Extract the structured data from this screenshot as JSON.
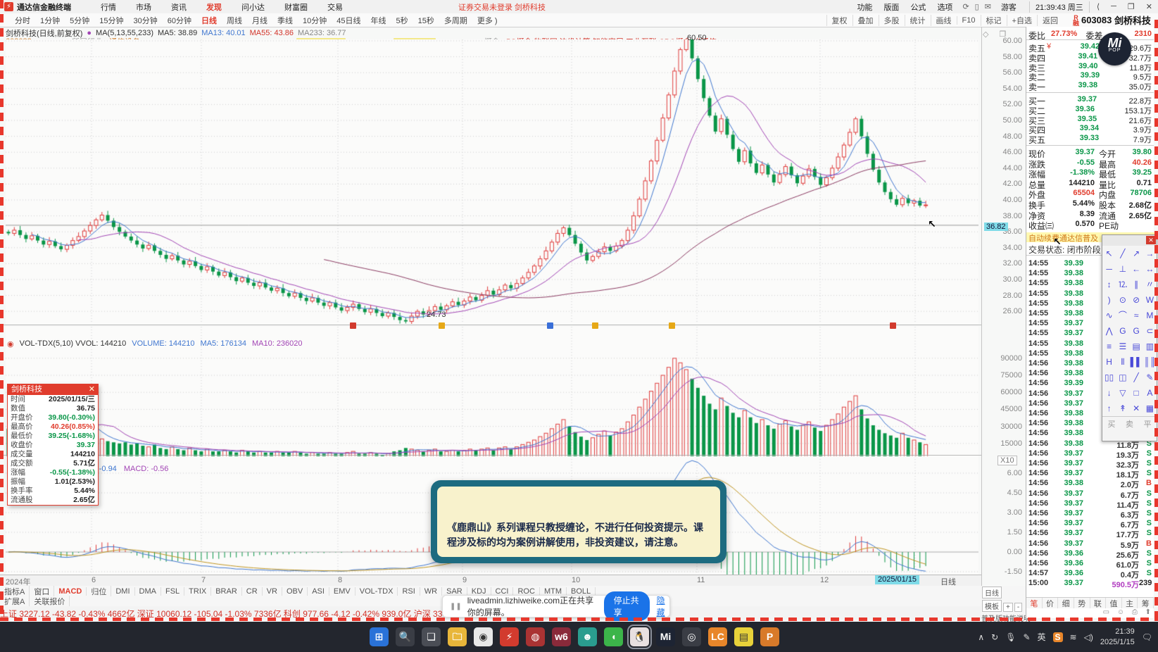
{
  "window": {
    "logo_glyph": "⚡",
    "app_name": "通达信金融终端",
    "login_notice": "证券交易未登录 剑桥科技",
    "guest": "游客",
    "clock": "21:39:43 周三",
    "win_buttons": [
      "⟨",
      "─",
      "❐",
      "✕"
    ]
  },
  "menubar": {
    "items": [
      "行情",
      "市场",
      "资讯",
      "发现",
      "问小达",
      "财富圈",
      "交易"
    ],
    "active": "发现",
    "right_items": [
      "功能",
      "版面",
      "公式",
      "选项"
    ],
    "right_icons": [
      "⟳",
      "▯",
      "✉"
    ]
  },
  "period_bar": {
    "items": [
      "分时",
      "1分钟",
      "5分钟",
      "15分钟",
      "30分钟",
      "60分钟",
      "日线",
      "周线",
      "月线",
      "季线",
      "10分钟",
      "45日线",
      "年线",
      "5秒",
      "15秒",
      "多周期",
      "更多 )"
    ],
    "active": "日线",
    "right_buttons": [
      "复权",
      "叠加",
      "多股",
      "统计",
      "画线",
      "F10",
      "标记",
      "+自选",
      "返回"
    ],
    "stock_badge": "R 融",
    "stock_code": "603083",
    "stock_name": "剑桥科技"
  },
  "chart_header": {
    "title": "剑桥科技(日线,前复权)",
    "dot_icon": "●",
    "ma_label": "MA(5,13,55,233)",
    "ma5": "MA5: 38.89",
    "ma13": "MA13: 40.01",
    "ma55": "MA55: 43.86",
    "ma233": "MA233: 36.77",
    "code": "603083",
    "industry_label": "所属行业:",
    "industry": "通信设备",
    "concept_label": "概念:",
    "concepts": "5G概念 物联网 边缘计算 智能家居 工业互联 CPO概念 光通信",
    "tool_icons": "◇ ❐"
  },
  "main_chart": {
    "price_axis": [
      "60.00",
      "58.00",
      "56.00",
      "54.00",
      "52.00",
      "50.00",
      "48.00",
      "46.00",
      "44.00",
      "42.00",
      "40.00",
      "38.00",
      "36.00",
      "34.00",
      "32.00",
      "30.00",
      "28.00",
      "26.00"
    ],
    "crosshair_value": "36.82",
    "high_annotation": "60.50",
    "low_annotation": "24.73"
  },
  "vol_pane": {
    "header_left": "VOL-TDX(5,10) VVOL: 144210",
    "volume": "VOLUME: 144210",
    "ma5": "MA5: 176134",
    "ma10": "MA10: 236020",
    "axis": [
      "90000",
      "75000",
      "60000",
      "45000",
      "30000",
      "15000"
    ],
    "multiplier": "X10"
  },
  "macd_pane": {
    "dea": "DEA: -0.94",
    "macd": "MACD: -0.56",
    "axis": [
      "6.00",
      "4.50",
      "3.00",
      "1.50",
      "0.00",
      "-1.50"
    ],
    "period_label": "日线"
  },
  "x_axis": {
    "labels": [
      "2024年",
      "6",
      "7",
      "8",
      "9",
      "10",
      "11",
      "12",
      "1"
    ],
    "current_date": "2025/01/15",
    "right_label": "日线"
  },
  "indicator_tabs": {
    "items": [
      "指标A",
      "窗口",
      "MACD",
      "归位",
      "DMI",
      "DMA",
      "FSL",
      "TRIX",
      "BRAR",
      "CR",
      "VR",
      "OBV",
      "ASI",
      "EMV",
      "VOL-TDX",
      "RSI",
      "WR",
      "SAR",
      "KDJ",
      "CCI",
      "ROC",
      "MTM",
      "BOLL"
    ],
    "active": "MACD",
    "subrow": [
      "扩展A",
      "关联报价"
    ]
  },
  "ticker": "上证 3227.12  -43.82  -0.43%  4662亿    深证 10060.12  -105.04  -1.03%  7336亿    科创 977.66  -4.12  -0.42%  939.0亿    沪深 3306.02  -24.61  -0.74%",
  "quote_panel": {
    "weibi_label": "委比",
    "weibi": "27.73%",
    "weicha_label": "委差",
    "weicha": "2310",
    "sell_rows": [
      {
        "label": "卖五",
        "mark": "¥",
        "price": "39.42",
        "vol": "29.6万"
      },
      {
        "label": "卖四",
        "mark": "",
        "price": "39.41",
        "vol": "32.7万"
      },
      {
        "label": "卖三",
        "mark": "",
        "price": "39.40",
        "vol": "11.8万"
      },
      {
        "label": "卖二",
        "mark": "",
        "price": "39.39",
        "vol": "9.5万"
      },
      {
        "label": "卖一",
        "mark": "",
        "price": "39.38",
        "vol": "35.0万"
      }
    ],
    "buy_rows": [
      {
        "label": "买一",
        "price": "39.37",
        "vol": "22.8万"
      },
      {
        "label": "买二",
        "price": "39.36",
        "vol": "153.1万"
      },
      {
        "label": "买三",
        "price": "39.35",
        "vol": "21.6万"
      },
      {
        "label": "买四",
        "price": "39.34",
        "vol": "3.9万"
      },
      {
        "label": "买五",
        "price": "39.33",
        "vol": "7.9万"
      }
    ],
    "stats": [
      {
        "l1": "现价",
        "v1": "39.37",
        "c1": "green",
        "l2": "今开",
        "v2": "39.80",
        "c2": "green"
      },
      {
        "l1": "涨跌",
        "v1": "-0.55",
        "c1": "green",
        "l2": "最高",
        "v2": "40.26",
        "c2": "red"
      },
      {
        "l1": "涨幅",
        "v1": "-1.38%",
        "c1": "green",
        "l2": "最低",
        "v2": "39.25",
        "c2": "green"
      },
      {
        "l1": "总量",
        "v1": "144210",
        "c1": "dark",
        "l2": "量比",
        "v2": "0.71",
        "c2": "dark"
      },
      {
        "l1": "外盘",
        "v1": "65504",
        "c1": "red",
        "l2": "内盘",
        "v2": "78706",
        "c2": "green"
      },
      {
        "l1": "换手",
        "v1": "5.44%",
        "c1": "dark",
        "l2": "股本",
        "v2": "2.68亿",
        "c2": "dark"
      },
      {
        "l1": "净资",
        "v1": "8.39",
        "c1": "dark",
        "l2": "流通",
        "v2": "2.65亿",
        "c2": "dark"
      },
      {
        "l1": "收益㈢",
        "v1": "0.570",
        "c1": "dark",
        "l2": "PE动",
        "v2": "",
        "c2": "dark"
      }
    ],
    "notice": "自动续费通达信普及",
    "trade_status": "交易状态: 闭市阶段",
    "ticks": [
      {
        "t": "14:55",
        "p": "39.39",
        "v": "",
        "f": ""
      },
      {
        "t": "14:55",
        "p": "39.38",
        "v": "",
        "f": ""
      },
      {
        "t": "14:55",
        "p": "39.38",
        "v": "",
        "f": ""
      },
      {
        "t": "14:55",
        "p": "39.38",
        "v": "",
        "f": ""
      },
      {
        "t": "14:55",
        "p": "39.38",
        "v": "",
        "f": ""
      },
      {
        "t": "14:55",
        "p": "39.38",
        "v": "",
        "f": ""
      },
      {
        "t": "14:55",
        "p": "39.37",
        "v": "",
        "f": ""
      },
      {
        "t": "14:55",
        "p": "39.37",
        "v": "",
        "f": ""
      },
      {
        "t": "14:55",
        "p": "39.38",
        "v": "",
        "f": ""
      },
      {
        "t": "14:55",
        "p": "39.38",
        "v": "",
        "f": ""
      },
      {
        "t": "14:56",
        "p": "39.38",
        "v": "",
        "f": ""
      },
      {
        "t": "14:56",
        "p": "39.38",
        "v": "",
        "f": ""
      },
      {
        "t": "14:56",
        "p": "39.39",
        "v": "",
        "f": ""
      },
      {
        "t": "14:56",
        "p": "39.37",
        "v": "",
        "f": ""
      },
      {
        "t": "14:56",
        "p": "39.37",
        "v": "",
        "f": ""
      },
      {
        "t": "14:56",
        "p": "39.38",
        "v": "",
        "f": ""
      },
      {
        "t": "14:56",
        "p": "39.38",
        "v": "",
        "f": ""
      },
      {
        "t": "14:56",
        "p": "39.38",
        "v": "6.7万",
        "f": "B"
      },
      {
        "t": "14:56",
        "p": "39.38",
        "v": "11.8万",
        "f": "S"
      },
      {
        "t": "14:56",
        "p": "39.37",
        "v": "19.3万",
        "f": "S"
      },
      {
        "t": "14:56",
        "p": "39.37",
        "v": "32.3万",
        "f": "S"
      },
      {
        "t": "14:56",
        "p": "39.37",
        "v": "18.1万",
        "f": "S"
      },
      {
        "t": "14:56",
        "p": "39.38",
        "v": "2.0万",
        "f": "B"
      },
      {
        "t": "14:56",
        "p": "39.37",
        "v": "6.7万",
        "f": "S"
      },
      {
        "t": "14:56",
        "p": "39.37",
        "v": "11.4万",
        "f": "S"
      },
      {
        "t": "14:56",
        "p": "39.37",
        "v": "6.3万",
        "f": "S"
      },
      {
        "t": "14:56",
        "p": "39.37",
        "v": "6.7万",
        "f": "S"
      },
      {
        "t": "14:56",
        "p": "39.37",
        "v": "17.7万",
        "f": "S"
      },
      {
        "t": "14:56",
        "p": "39.37",
        "v": "5.9万",
        "f": "B"
      },
      {
        "t": "14:56",
        "p": "39.36",
        "v": "25.6万",
        "f": "S"
      },
      {
        "t": "14:56",
        "p": "39.36",
        "v": "61.0万",
        "f": "S"
      },
      {
        "t": "14:57",
        "p": "39.36",
        "v": "0.4万",
        "f": "S"
      },
      {
        "t": "15:00",
        "p": "39.37",
        "v": "590.5万",
        "f": "239"
      }
    ],
    "tabs": [
      "笔",
      "价",
      "细",
      "势",
      "联",
      "值",
      "主",
      "筹"
    ],
    "active_tab": "笔",
    "icons_row": "▭ ☺ ⎙ ⬆",
    "left_controls": {
      "period": "日线",
      "template": "模板",
      "plus": "+",
      "minus": "-",
      "help": "普及版功能说明"
    }
  },
  "palette": {
    "close": "✕",
    "tools": [
      "↖",
      "╱",
      "↗",
      "→",
      "─",
      "⊥",
      "←",
      "↔",
      "↕",
      "⒓",
      "∥",
      "〃",
      ")",
      "⊙",
      "⊘",
      "W",
      "∿",
      "⌒",
      "≈",
      "M",
      "⋀",
      "G",
      "G",
      "⊂",
      "≡",
      "☰",
      "▤",
      "▥",
      "H",
      "⦀",
      "▌▌",
      "║║",
      "▯▯",
      "◫",
      "╱",
      "✎",
      "↓",
      "▽",
      "□",
      "A",
      "↑",
      "↟",
      "✕",
      "▦"
    ],
    "footer": [
      "买",
      "卖",
      "平"
    ]
  },
  "mi_logo": {
    "line1": "Mi",
    "line2": "POP"
  },
  "info_popup": {
    "title": "剑桥科技",
    "close": "✕",
    "rows": [
      {
        "label": "时间",
        "value": "2025/01/15/三",
        "color": "dark"
      },
      {
        "label": "数值",
        "value": "36.75",
        "color": "dark"
      },
      {
        "label": "开盘价",
        "value": "39.80(-0.30%)",
        "color": "green"
      },
      {
        "label": "最高价",
        "value": "40.26(0.85%)",
        "color": "red"
      },
      {
        "label": "最低价",
        "value": "39.25(-1.68%)",
        "color": "green"
      },
      {
        "label": "收盘价",
        "value": "39.37",
        "color": "green"
      },
      {
        "label": "成交量",
        "value": "144210",
        "color": "dark"
      },
      {
        "label": "成交额",
        "value": "5.71亿",
        "color": "dark"
      },
      {
        "label": "涨幅",
        "value": "-0.55(-1.38%)",
        "color": "green"
      },
      {
        "label": "振幅",
        "value": "1.01(2.53%)",
        "color": "dark"
      },
      {
        "label": "换手率",
        "value": "5.44%",
        "color": "dark"
      },
      {
        "label": "流通股",
        "value": "2.65亿",
        "color": "dark"
      }
    ]
  },
  "disclaimer": {
    "text": "《鹿鼎山》系列课程只教授缠论，不进行任何投资提示。课程涉及标的均为案例讲解使用，非投资建议，请注意。"
  },
  "share_bar": {
    "pause_icon": "❚❚",
    "text": "liveadmin.lizhiweike.com正在共享你的屏幕。",
    "stop_label": "停止共享",
    "hide_label": "隐藏"
  },
  "taskbar": {
    "center_icons": [
      {
        "name": "start",
        "glyph": "⊞",
        "bg": "#2a72d8"
      },
      {
        "name": "search",
        "glyph": "🔍",
        "bg": "#3a3d45"
      },
      {
        "name": "task-view",
        "glyph": "❏",
        "bg": "#4a4d55"
      },
      {
        "name": "file-explorer",
        "glyph": "🗀",
        "bg": "#e8b63a"
      },
      {
        "name": "chrome",
        "glyph": "◉",
        "bg": "#e8e8e8"
      },
      {
        "name": "tdx",
        "glyph": "⚡",
        "bg": "#d23b2e"
      },
      {
        "name": "app-red",
        "glyph": "◍",
        "bg": "#a33"
      },
      {
        "name": "wind",
        "glyph": "w6",
        "bg": "#8a2a3a"
      },
      {
        "name": "app-teal",
        "glyph": "☻",
        "bg": "#2a9d8f"
      },
      {
        "name": "wechat",
        "glyph": "◖",
        "bg": "#3cb54a"
      },
      {
        "name": "qq",
        "glyph": "🐧",
        "bg": "#e8e0e0"
      },
      {
        "name": "mi",
        "glyph": "Mi",
        "bg": "#1d2433"
      },
      {
        "name": "camera",
        "glyph": "◎",
        "bg": "#3a3d45"
      },
      {
        "name": "lc",
        "glyph": "LC",
        "bg": "#e8862a"
      },
      {
        "name": "notes",
        "glyph": "▤",
        "bg": "#e8d23a"
      },
      {
        "name": "app-p",
        "glyph": "P",
        "bg": "#d87a2a"
      }
    ],
    "tray": {
      "chevron": "∧",
      "loop": "↻",
      "mic": "🎙",
      "pen": "✎",
      "lang": "英",
      "badge": "S",
      "time": "21:39",
      "date": "2025/1/15",
      "bubble": "🗨"
    }
  },
  "chart_data": {
    "type": "candlestick",
    "title": "剑桥科技 603083 日线 2024/05 - 2025/01/15",
    "ylim": [
      24.5,
      61
    ],
    "high_point": 60.5,
    "low_point": 24.73,
    "last_close": 39.37,
    "closes": [
      35.8,
      36.2,
      35.6,
      35.1,
      35.5,
      34.9,
      34.4,
      34.8,
      34.2,
      33.8,
      34.3,
      34.9,
      35.4,
      36.1,
      36.8,
      37.5,
      38.1,
      37.4,
      36.6,
      36.0,
      35.4,
      34.9,
      34.4,
      33.9,
      34.3,
      33.6,
      33.1,
      32.6,
      33.0,
      32.4,
      31.9,
      32.3,
      31.7,
      31.2,
      31.6,
      31.0,
      30.5,
      30.9,
      30.3,
      29.8,
      30.2,
      29.6,
      29.2,
      29.6,
      29.0,
      28.6,
      28.9,
      28.3,
      27.9,
      28.3,
      27.7,
      27.3,
      27.7,
      27.1,
      26.7,
      27.1,
      26.5,
      26.1,
      26.5,
      26.9,
      26.3,
      25.9,
      26.3,
      25.8,
      25.4,
      25.8,
      25.3,
      24.9,
      24.73,
      25.4,
      26.0,
      25.6,
      26.1,
      26.6,
      26.2,
      26.7,
      27.2,
      26.8,
      27.3,
      27.8,
      27.4,
      28.0,
      28.6,
      28.1,
      28.7,
      29.3,
      28.9,
      29.5,
      30.2,
      30.9,
      31.7,
      32.6,
      33.6,
      34.7,
      35.8,
      36.5,
      35.6,
      34.5,
      33.4,
      32.4,
      32.9,
      33.5,
      34.1,
      33.6,
      34.2,
      34.9,
      36.2,
      38.0,
      40.1,
      42.4,
      44.9,
      47.5,
      50.3,
      53.2,
      56.2,
      58.9,
      60.5,
      57.8,
      55.2,
      52.8,
      50.6,
      48.6,
      50.2,
      48.2,
      46.4,
      44.8,
      46.2,
      44.6,
      43.4,
      44.4,
      43.2,
      42.2,
      43.2,
      44.2,
      43.1,
      42.1,
      43.0,
      43.9,
      42.9,
      41.9,
      42.8,
      44.0,
      45.4,
      46.9,
      48.5,
      50.2,
      48.0,
      45.8,
      43.8,
      42.2,
      41.0,
      40.1,
      39.4,
      40.2,
      39.6,
      39.9,
      39.3,
      39.37
    ],
    "volumes_k": [
      28,
      22,
      19,
      24,
      20,
      17,
      15,
      26,
      24,
      48,
      52,
      40,
      34,
      28,
      24,
      21,
      19,
      17,
      16,
      15,
      16,
      14,
      15,
      13,
      12,
      14,
      11,
      10,
      12,
      10,
      9,
      11,
      9,
      8,
      10,
      8,
      8,
      9,
      8,
      7,
      9,
      8,
      7,
      8,
      7,
      7,
      8,
      7,
      7,
      8,
      7,
      6,
      7,
      6,
      6,
      7,
      6,
      6,
      7,
      8,
      6,
      6,
      7,
      6,
      5,
      6,
      8,
      9,
      11,
      10,
      9,
      8,
      9,
      10,
      8,
      8,
      9,
      8,
      9,
      10,
      9,
      10,
      11,
      9,
      11,
      12,
      10,
      12,
      14,
      16,
      18,
      21,
      24,
      28,
      32,
      36,
      30,
      25,
      21,
      18,
      20,
      23,
      26,
      22,
      25,
      28,
      34,
      40,
      47,
      54,
      61,
      68,
      75,
      82,
      90,
      86,
      80,
      72,
      64,
      57,
      50,
      45,
      55,
      48,
      42,
      38,
      44,
      38,
      33,
      36,
      31,
      28,
      32,
      35,
      30,
      27,
      31,
      34,
      29,
      26,
      31,
      36,
      41,
      47,
      52,
      57,
      45,
      37,
      31,
      27,
      24,
      22,
      20,
      24,
      20,
      18,
      16,
      14
    ],
    "colors": {
      "up": "#e03c3c",
      "down": "#0a9648",
      "ma5": "#4077d0",
      "ma13": "#a245b5",
      "ma55": "#8b3a62",
      "grid": "#cfcfcf",
      "dif": "#4077d0",
      "dea": "#c09520"
    }
  },
  "event_markers": [
    {
      "x": 497,
      "color": "#d23b2e"
    },
    {
      "x": 623,
      "color": "#e6a817"
    },
    {
      "x": 777,
      "color": "#3a6fd8"
    },
    {
      "x": 841,
      "color": "#e6a817"
    },
    {
      "x": 950,
      "color": "#e6a817"
    },
    {
      "x": 1264,
      "color": "#d23b2e"
    }
  ]
}
